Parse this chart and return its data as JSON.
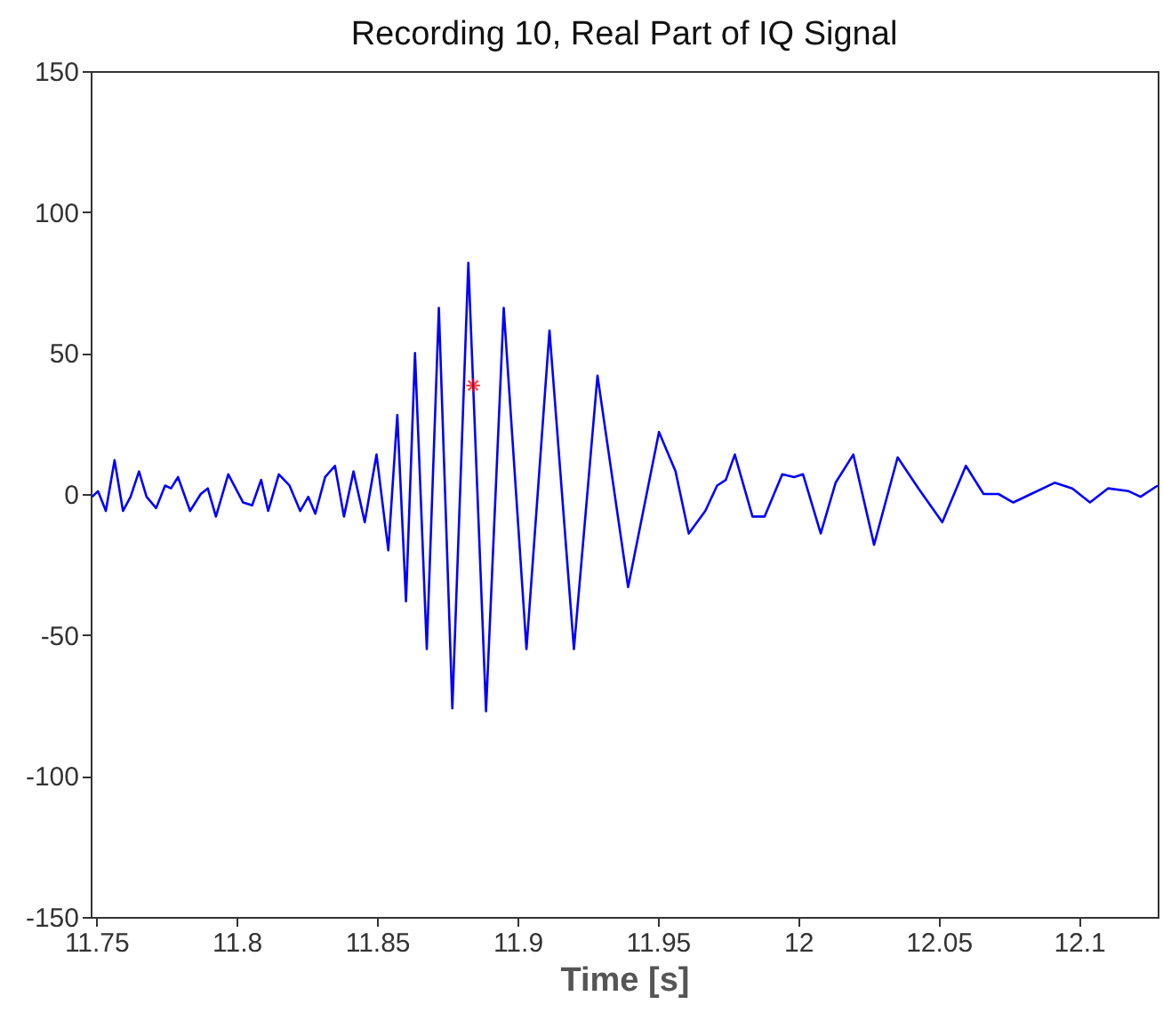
{
  "chart_data": {
    "type": "line",
    "title": "Recording 10, Real Part of IQ Signal",
    "xlabel": "Time [s]",
    "xlim": [
      11.748,
      12.128
    ],
    "xticks": [
      11.75,
      11.8,
      11.85,
      11.9,
      11.95,
      12,
      12.05,
      12.1
    ],
    "ylim": [
      -150,
      150
    ],
    "yticks": [
      -150,
      -100,
      -50,
      0,
      50,
      100,
      150
    ],
    "grid": false,
    "series": [
      {
        "color": "#0000ff",
        "marker": "none",
        "line_style": "solid",
        "x": [
          11.7485,
          11.7506,
          11.7534,
          11.7565,
          11.7595,
          11.7622,
          11.7652,
          11.7679,
          11.7713,
          11.7745,
          11.7766,
          11.7791,
          11.7834,
          11.7872,
          11.7897,
          11.7926,
          11.797,
          11.8023,
          11.8055,
          11.8087,
          11.8112,
          11.815,
          11.8188,
          11.8226,
          11.8255,
          11.828,
          11.8315,
          11.835,
          11.8382,
          11.8416,
          11.8456,
          11.8498,
          11.854,
          11.8572,
          11.8603,
          11.8635,
          11.8677,
          11.872,
          11.8768,
          11.8825,
          11.8888,
          11.8951,
          11.9032,
          11.9114,
          11.9201,
          11.9285,
          11.9394,
          11.9504,
          11.9563,
          11.961,
          11.9669,
          11.9711,
          11.9742,
          11.9774,
          11.9837,
          11.988,
          11.9943,
          11.9985,
          12.0017,
          12.008,
          12.0133,
          12.0196,
          12.027,
          12.0354,
          12.0428,
          12.0513,
          12.0597,
          12.066,
          12.0713,
          12.0766,
          12.0829,
          12.0913,
          12.0976,
          12.1039,
          12.1103,
          12.1177,
          12.1219,
          12.128
        ],
        "values": [
          -1,
          1,
          -6,
          12,
          -6,
          -1,
          8,
          -1,
          -5,
          3,
          2,
          6,
          -6,
          0,
          2,
          -8,
          7,
          -3,
          -4,
          5,
          -6,
          7,
          3,
          -6,
          -1,
          -7,
          6,
          10,
          -8,
          8,
          -10,
          14,
          -20,
          28,
          -38,
          50,
          -55,
          66,
          -76,
          82,
          -77,
          66,
          -55,
          58,
          -55,
          42,
          -33,
          22,
          8,
          -14,
          -6,
          3,
          5,
          14,
          -8,
          -8,
          7,
          6,
          7,
          -14,
          4,
          14,
          -18,
          13,
          2,
          -10,
          10,
          0,
          0,
          -3,
          0,
          4,
          2,
          -3,
          2,
          1,
          -1,
          3
        ]
      },
      {
        "type": "scatter",
        "color": "#ff0000",
        "marker": "cross",
        "x": [
          11.8842
        ],
        "values": [
          38.5
        ]
      }
    ]
  }
}
